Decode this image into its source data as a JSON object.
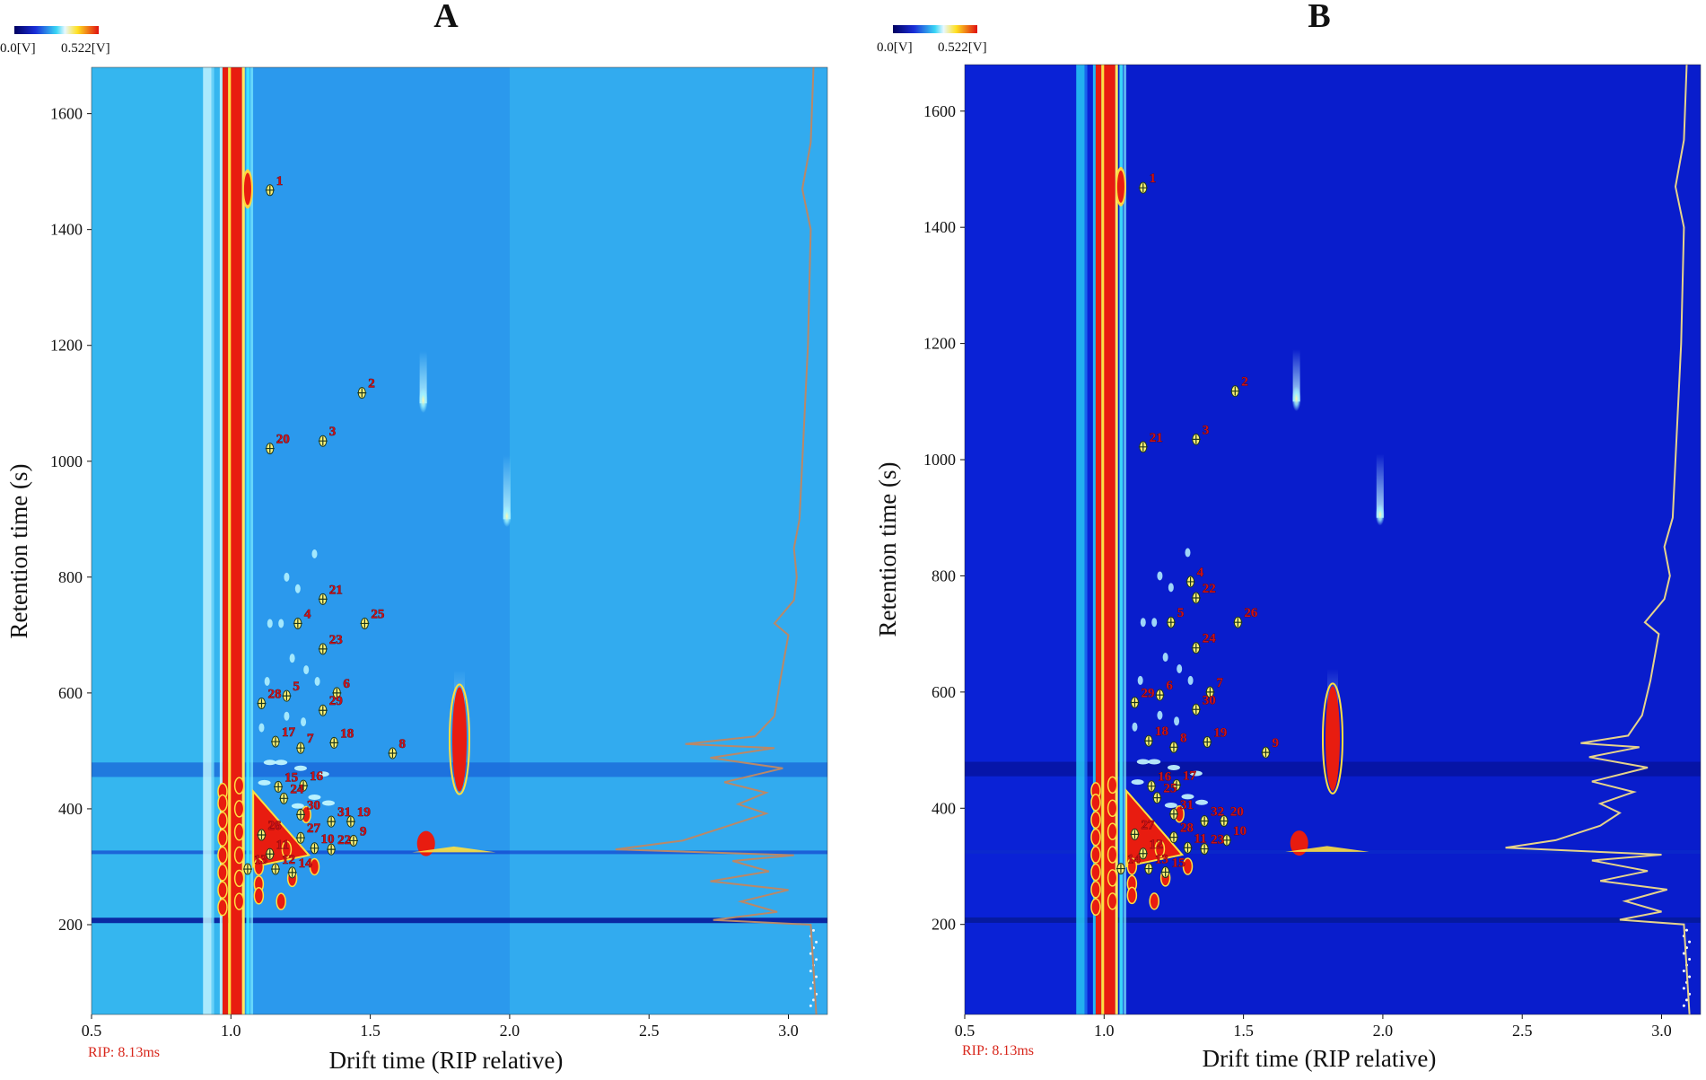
{
  "colors": {
    "background_A": "#35b6ef",
    "background_B": "#0a22d6",
    "rip_red": "#e81c10",
    "peak_red": "#c8121a",
    "spectrum_A": "#b98868",
    "spectrum_B": "#e6d38a",
    "rip_text": "#d8261b"
  },
  "colorbar": {
    "min_label": "0.0[V]",
    "max_label": "0.522[V]"
  },
  "chart_data": [
    {
      "type": "heatmap",
      "title": "A",
      "xlabel": "Drift time (RIP relative)",
      "ylabel": "Retention time (s)",
      "xlim": [
        0.5,
        3.14
      ],
      "ylim": [
        45,
        1680
      ],
      "x_ticks": [
        "0.5",
        "1.0",
        "1.5",
        "2.0",
        "2.5",
        "3.0"
      ],
      "y_ticks": [
        "200",
        "400",
        "600",
        "800",
        "1000",
        "1200",
        "1400",
        "1600"
      ],
      "rip_label": "RIP: 8.13ms",
      "peaks": [
        {
          "label": "1",
          "x": 1.14,
          "y": 1468
        },
        {
          "label": "2",
          "x": 1.47,
          "y": 1118
        },
        {
          "label": "20",
          "x": 1.14,
          "y": 1022
        },
        {
          "label": "3",
          "x": 1.33,
          "y": 1035
        },
        {
          "label": "21",
          "x": 1.33,
          "y": 762
        },
        {
          "label": "4",
          "x": 1.24,
          "y": 720
        },
        {
          "label": "25",
          "x": 1.48,
          "y": 720
        },
        {
          "label": "23",
          "x": 1.33,
          "y": 676
        },
        {
          "label": "5",
          "x": 1.2,
          "y": 595
        },
        {
          "label": "6",
          "x": 1.38,
          "y": 600
        },
        {
          "label": "28",
          "x": 1.11,
          "y": 582
        },
        {
          "label": "29",
          "x": 1.33,
          "y": 570
        },
        {
          "label": "17",
          "x": 1.16,
          "y": 516
        },
        {
          "label": "18",
          "x": 1.37,
          "y": 514
        },
        {
          "label": "7",
          "x": 1.25,
          "y": 505
        },
        {
          "label": "8",
          "x": 1.58,
          "y": 496
        },
        {
          "label": "15",
          "x": 1.17,
          "y": 438
        },
        {
          "label": "16",
          "x": 1.26,
          "y": 440
        },
        {
          "label": "24",
          "x": 1.19,
          "y": 418
        },
        {
          "label": "30",
          "x": 1.25,
          "y": 390
        },
        {
          "label": "31",
          "x": 1.36,
          "y": 378
        },
        {
          "label": "19",
          "x": 1.43,
          "y": 378
        },
        {
          "label": "26",
          "x": 1.11,
          "y": 355
        },
        {
          "label": "27",
          "x": 1.25,
          "y": 350
        },
        {
          "label": "9",
          "x": 1.44,
          "y": 345
        },
        {
          "label": "10",
          "x": 1.3,
          "y": 332
        },
        {
          "label": "22",
          "x": 1.36,
          "y": 330
        },
        {
          "label": "11",
          "x": 1.14,
          "y": 322
        },
        {
          "label": "13",
          "x": 1.06,
          "y": 296
        },
        {
          "label": "12",
          "x": 1.16,
          "y": 296
        },
        {
          "label": "14",
          "x": 1.22,
          "y": 290
        }
      ],
      "spectrum": [
        {
          "y": 45,
          "x": 3.1
        },
        {
          "y": 200,
          "x": 3.08
        },
        {
          "y": 208,
          "x": 2.73
        },
        {
          "y": 222,
          "x": 2.96
        },
        {
          "y": 240,
          "x": 2.83
        },
        {
          "y": 260,
          "x": 3.0
        },
        {
          "y": 275,
          "x": 2.72
        },
        {
          "y": 292,
          "x": 2.93
        },
        {
          "y": 310,
          "x": 2.8
        },
        {
          "y": 320,
          "x": 3.02
        },
        {
          "y": 330,
          "x": 2.38
        },
        {
          "y": 345,
          "x": 2.62
        },
        {
          "y": 370,
          "x": 2.78
        },
        {
          "y": 392,
          "x": 2.92
        },
        {
          "y": 408,
          "x": 2.82
        },
        {
          "y": 428,
          "x": 2.92
        },
        {
          "y": 446,
          "x": 2.77
        },
        {
          "y": 470,
          "x": 2.98
        },
        {
          "y": 488,
          "x": 2.72
        },
        {
          "y": 505,
          "x": 2.95
        },
        {
          "y": 512,
          "x": 2.63
        },
        {
          "y": 525,
          "x": 2.88
        },
        {
          "y": 560,
          "x": 2.95
        },
        {
          "y": 620,
          "x": 2.97
        },
        {
          "y": 700,
          "x": 3.0
        },
        {
          "y": 720,
          "x": 2.95
        },
        {
          "y": 760,
          "x": 3.02
        },
        {
          "y": 800,
          "x": 3.03
        },
        {
          "y": 850,
          "x": 3.02
        },
        {
          "y": 900,
          "x": 3.04
        },
        {
          "y": 1000,
          "x": 3.05
        },
        {
          "y": 1200,
          "x": 3.07
        },
        {
          "y": 1400,
          "x": 3.08
        },
        {
          "y": 1470,
          "x": 3.05
        },
        {
          "y": 1550,
          "x": 3.08
        },
        {
          "y": 1680,
          "x": 3.09
        }
      ]
    },
    {
      "type": "heatmap",
      "title": "B",
      "xlabel": "Drift time (RIP relative)",
      "ylabel": "Retention time (s)",
      "xlim": [
        0.5,
        3.14
      ],
      "ylim": [
        45,
        1680
      ],
      "x_ticks": [
        "0.5",
        "1.0",
        "1.5",
        "2.0",
        "2.5",
        "3.0"
      ],
      "y_ticks": [
        "200",
        "400",
        "600",
        "800",
        "1000",
        "1200",
        "1400",
        "1600"
      ],
      "rip_label": "RIP: 8.13ms",
      "peaks": [
        {
          "label": "1",
          "x": 1.14,
          "y": 1468
        },
        {
          "label": "2",
          "x": 1.47,
          "y": 1118
        },
        {
          "label": "21",
          "x": 1.14,
          "y": 1022
        },
        {
          "label": "3",
          "x": 1.33,
          "y": 1035
        },
        {
          "label": "4",
          "x": 1.31,
          "y": 790
        },
        {
          "label": "22",
          "x": 1.33,
          "y": 762
        },
        {
          "label": "5",
          "x": 1.24,
          "y": 720
        },
        {
          "label": "26",
          "x": 1.48,
          "y": 720
        },
        {
          "label": "24",
          "x": 1.33,
          "y": 676
        },
        {
          "label": "6",
          "x": 1.2,
          "y": 595
        },
        {
          "label": "7",
          "x": 1.38,
          "y": 600
        },
        {
          "label": "29",
          "x": 1.11,
          "y": 582
        },
        {
          "label": "30",
          "x": 1.33,
          "y": 570
        },
        {
          "label": "18",
          "x": 1.16,
          "y": 516
        },
        {
          "label": "19",
          "x": 1.37,
          "y": 514
        },
        {
          "label": "8",
          "x": 1.25,
          "y": 505
        },
        {
          "label": "9",
          "x": 1.58,
          "y": 496
        },
        {
          "label": "16",
          "x": 1.17,
          "y": 438
        },
        {
          "label": "17",
          "x": 1.26,
          "y": 440
        },
        {
          "label": "25",
          "x": 1.19,
          "y": 418
        },
        {
          "label": "31",
          "x": 1.25,
          "y": 390
        },
        {
          "label": "32",
          "x": 1.36,
          "y": 378
        },
        {
          "label": "20",
          "x": 1.43,
          "y": 378
        },
        {
          "label": "27",
          "x": 1.11,
          "y": 355
        },
        {
          "label": "28",
          "x": 1.25,
          "y": 350
        },
        {
          "label": "10",
          "x": 1.44,
          "y": 345
        },
        {
          "label": "11",
          "x": 1.3,
          "y": 332
        },
        {
          "label": "23",
          "x": 1.36,
          "y": 330
        },
        {
          "label": "12",
          "x": 1.14,
          "y": 322
        },
        {
          "label": "14",
          "x": 1.06,
          "y": 296
        },
        {
          "label": "13",
          "x": 1.16,
          "y": 296
        },
        {
          "label": "15",
          "x": 1.22,
          "y": 290
        }
      ],
      "spectrum": [
        {
          "y": 45,
          "x": 3.1
        },
        {
          "y": 200,
          "x": 3.08
        },
        {
          "y": 208,
          "x": 2.85
        },
        {
          "y": 222,
          "x": 3.0
        },
        {
          "y": 240,
          "x": 2.87
        },
        {
          "y": 260,
          "x": 3.02
        },
        {
          "y": 275,
          "x": 2.78
        },
        {
          "y": 292,
          "x": 2.95
        },
        {
          "y": 310,
          "x": 2.75
        },
        {
          "y": 320,
          "x": 3.0
        },
        {
          "y": 332,
          "x": 2.44
        },
        {
          "y": 345,
          "x": 2.62
        },
        {
          "y": 370,
          "x": 2.78
        },
        {
          "y": 392,
          "x": 2.85
        },
        {
          "y": 408,
          "x": 2.78
        },
        {
          "y": 428,
          "x": 2.9
        },
        {
          "y": 446,
          "x": 2.75
        },
        {
          "y": 470,
          "x": 2.95
        },
        {
          "y": 488,
          "x": 2.74
        },
        {
          "y": 505,
          "x": 2.92
        },
        {
          "y": 512,
          "x": 2.71
        },
        {
          "y": 525,
          "x": 2.88
        },
        {
          "y": 560,
          "x": 2.93
        },
        {
          "y": 620,
          "x": 2.96
        },
        {
          "y": 700,
          "x": 2.99
        },
        {
          "y": 720,
          "x": 2.94
        },
        {
          "y": 760,
          "x": 3.01
        },
        {
          "y": 800,
          "x": 3.03
        },
        {
          "y": 850,
          "x": 3.01
        },
        {
          "y": 900,
          "x": 3.04
        },
        {
          "y": 1000,
          "x": 3.05
        },
        {
          "y": 1200,
          "x": 3.07
        },
        {
          "y": 1400,
          "x": 3.08
        },
        {
          "y": 1470,
          "x": 3.05
        },
        {
          "y": 1550,
          "x": 3.08
        },
        {
          "y": 1680,
          "x": 3.09
        }
      ]
    }
  ]
}
